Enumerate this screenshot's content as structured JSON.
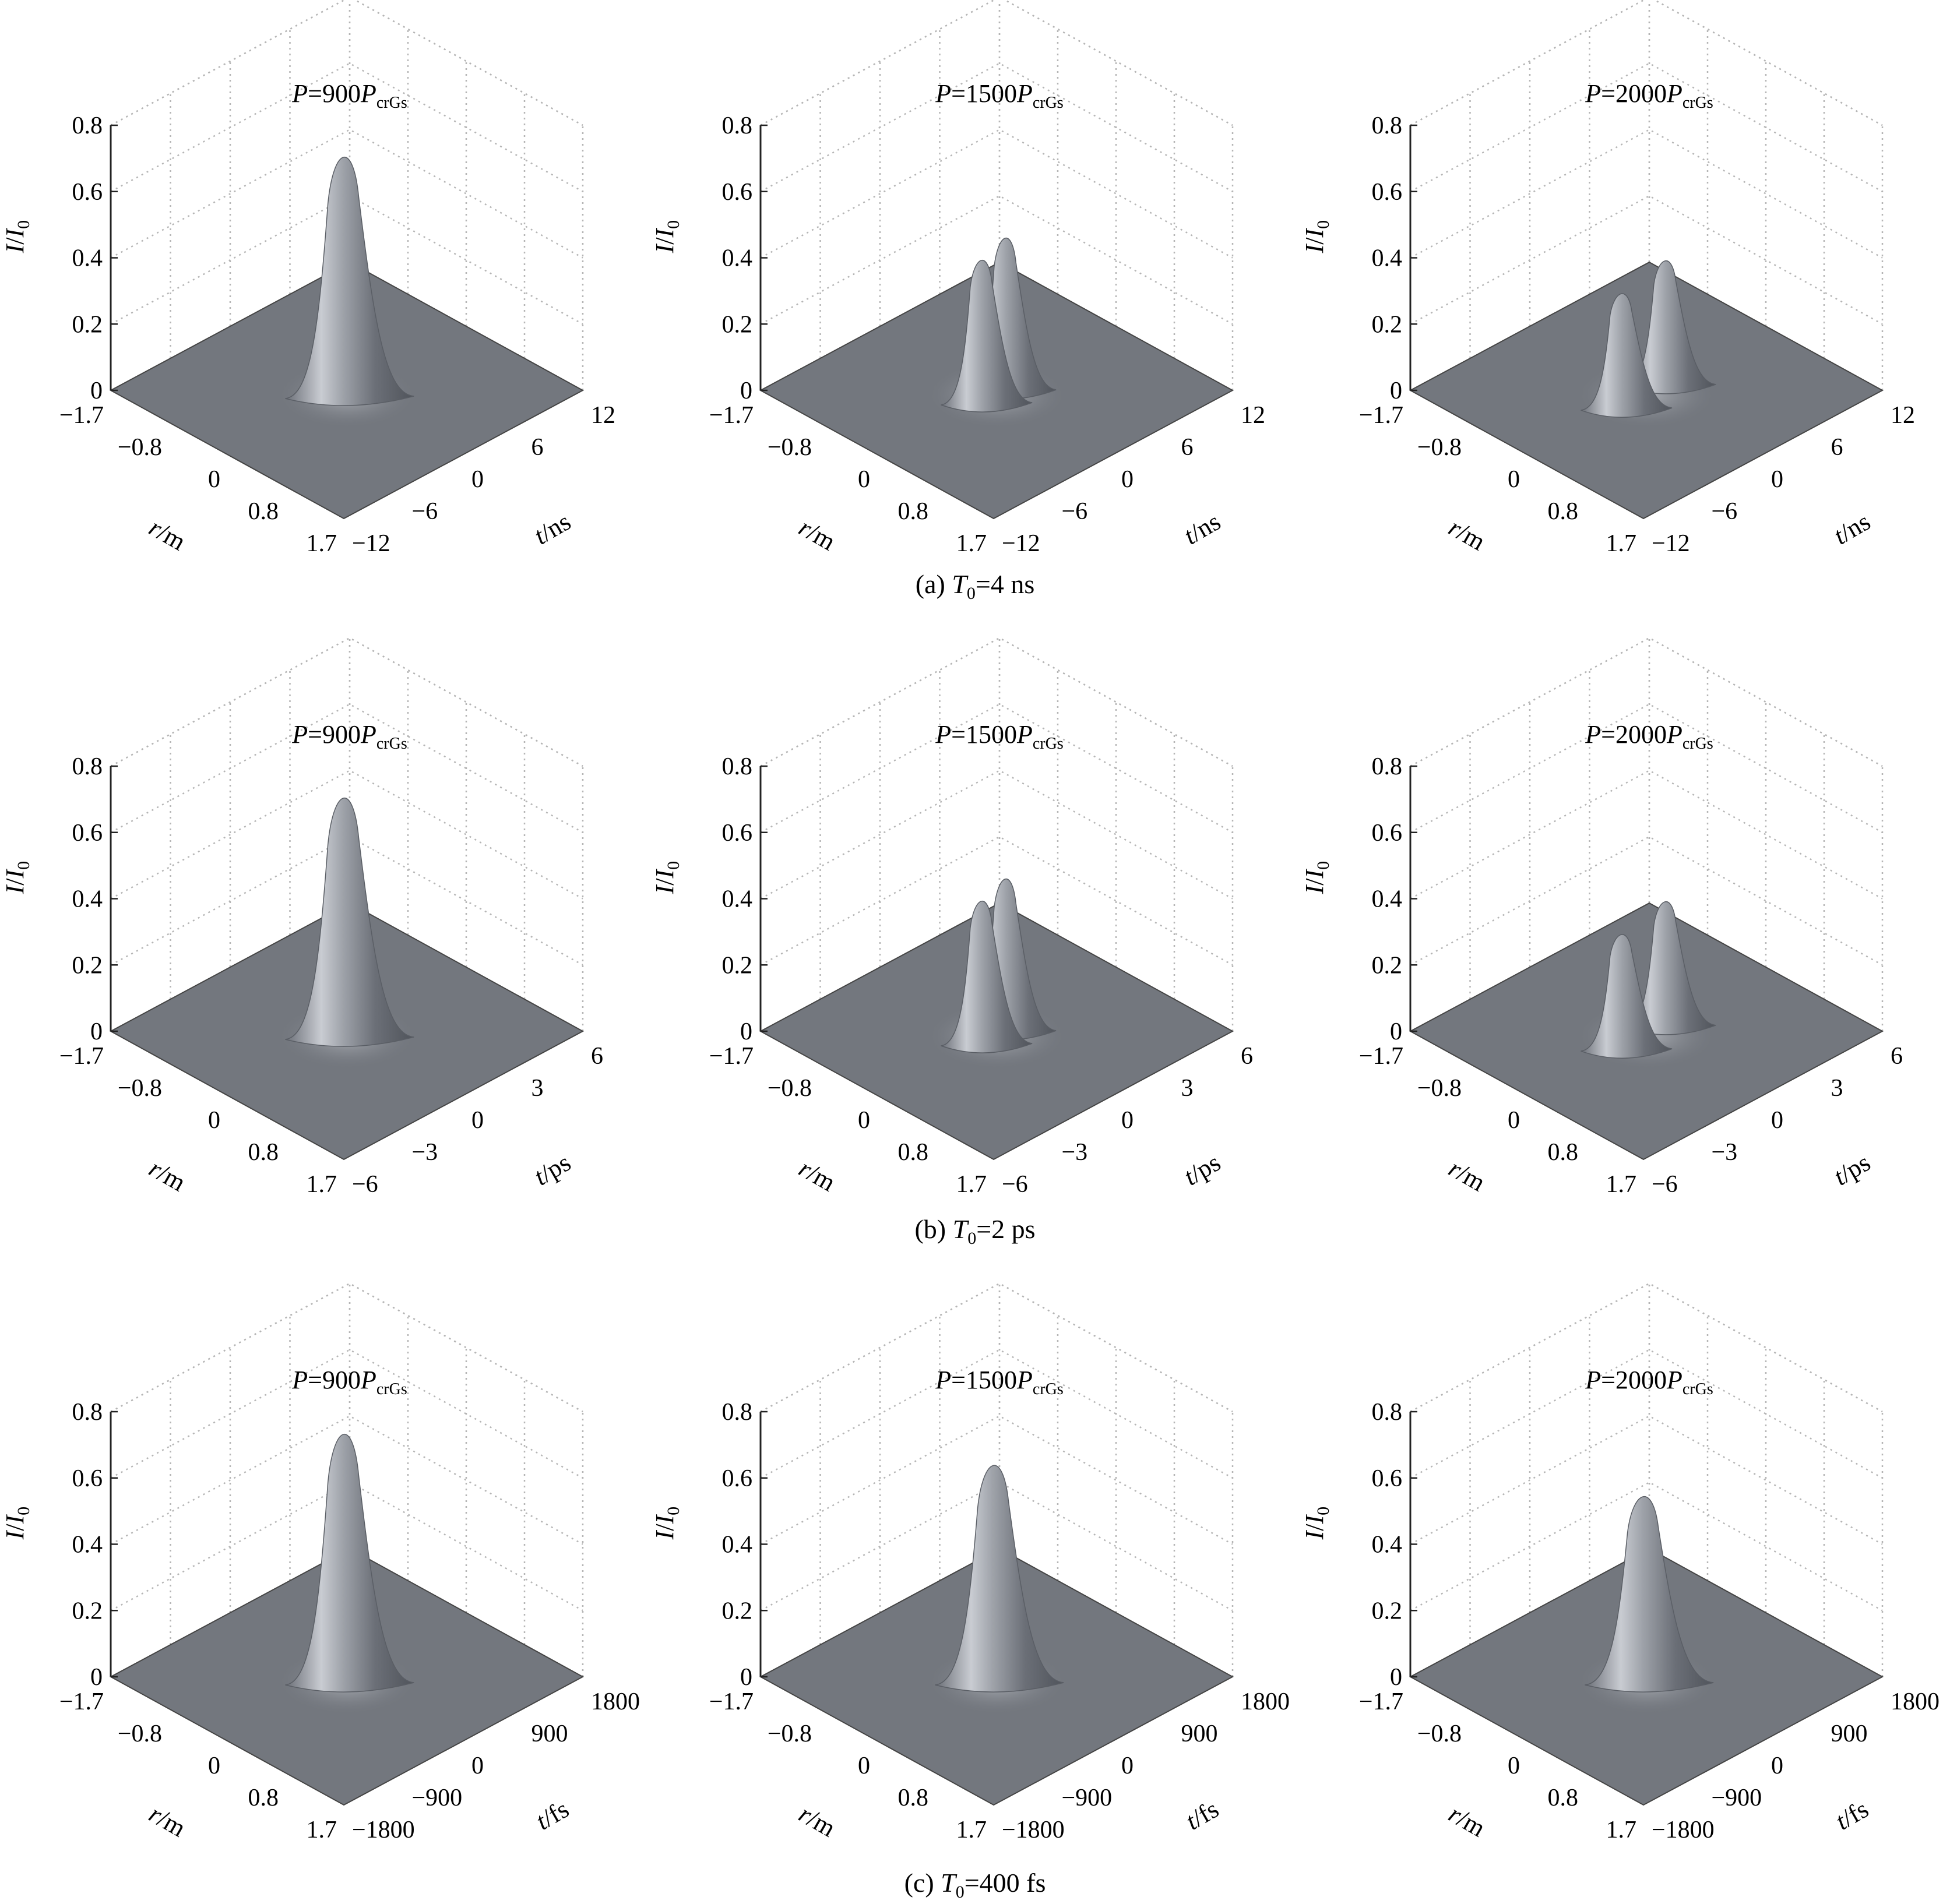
{
  "chart_data": [
    {
      "type": "surface3d",
      "title": {
        "P": "P",
        "val": "=900",
        "sub": "crGs"
      },
      "zlim": [
        0,
        0.8
      ],
      "zticks": [
        "0",
        "0.2",
        "0.4",
        "0.6",
        "0.8"
      ],
      "rticks": [
        "−1.7",
        "−0.8",
        "0",
        "0.8",
        "1.7"
      ],
      "tticks": [
        "−12",
        "−6",
        "0",
        "6",
        "12"
      ],
      "zlabel": {
        "a": "I",
        "b": "/",
        "c": "I",
        "sub": "0"
      },
      "rlabel": {
        "v": "r",
        "u": "/m"
      },
      "tlabel": {
        "v": "t",
        "u": "/ns"
      },
      "peaks": [
        {
          "r": 0,
          "t": 0,
          "height": 0.75
        }
      ]
    },
    {
      "type": "surface3d",
      "title": {
        "P": "P",
        "val": "=1500",
        "sub": "crGs"
      },
      "zlim": [
        0,
        0.8
      ],
      "zticks": [
        "0",
        "0.2",
        "0.4",
        "0.6",
        "0.8"
      ],
      "rticks": [
        "−1.7",
        "−0.8",
        "0",
        "0.8",
        "1.7"
      ],
      "tticks": [
        "−12",
        "−6",
        "0",
        "6",
        "12"
      ],
      "zlabel": {
        "a": "I",
        "b": "/",
        "c": "I",
        "sub": "0"
      },
      "rlabel": {
        "v": "r",
        "u": "/m"
      },
      "tlabel": {
        "v": "t",
        "u": "/ns"
      },
      "peaks": [
        {
          "r": 0,
          "t": -1.2,
          "height": 0.44
        },
        {
          "r": 0,
          "t": 1.2,
          "height": 0.47
        }
      ]
    },
    {
      "type": "surface3d",
      "title": {
        "P": "P",
        "val": "=2000",
        "sub": "crGs"
      },
      "zlim": [
        0,
        0.8
      ],
      "zticks": [
        "0",
        "0.2",
        "0.4",
        "0.6",
        "0.8"
      ],
      "rticks": [
        "−1.7",
        "−0.8",
        "0",
        "0.8",
        "1.7"
      ],
      "tticks": [
        "−12",
        "−6",
        "0",
        "6",
        "12"
      ],
      "zlabel": {
        "a": "I",
        "b": "/",
        "c": "I",
        "sub": "0"
      },
      "rlabel": {
        "v": "r",
        "u": "/m"
      },
      "tlabel": {
        "v": "t",
        "u": "/ns"
      },
      "peaks": [
        {
          "r": 0,
          "t": -2.2,
          "height": 0.35
        },
        {
          "r": 0,
          "t": 2.2,
          "height": 0.38
        }
      ]
    },
    {
      "type": "surface3d",
      "title": {
        "P": "P",
        "val": "=900",
        "sub": "crGs"
      },
      "zlim": [
        0,
        0.8
      ],
      "zticks": [
        "0",
        "0.2",
        "0.4",
        "0.6",
        "0.8"
      ],
      "rticks": [
        "−1.7",
        "−0.8",
        "0",
        "0.8",
        "1.7"
      ],
      "tticks": [
        "−6",
        "−3",
        "0",
        "3",
        "6"
      ],
      "zlabel": {
        "a": "I",
        "b": "/",
        "c": "I",
        "sub": "0"
      },
      "rlabel": {
        "v": "r",
        "u": "/m"
      },
      "tlabel": {
        "v": "t",
        "u": "/ps"
      },
      "peaks": [
        {
          "r": 0,
          "t": 0,
          "height": 0.75
        }
      ]
    },
    {
      "type": "surface3d",
      "title": {
        "P": "P",
        "val": "=1500",
        "sub": "crGs"
      },
      "zlim": [
        0,
        0.8
      ],
      "zticks": [
        "0",
        "0.2",
        "0.4",
        "0.6",
        "0.8"
      ],
      "rticks": [
        "−1.7",
        "−0.8",
        "0",
        "0.8",
        "1.7"
      ],
      "tticks": [
        "−6",
        "−3",
        "0",
        "3",
        "6"
      ],
      "zlabel": {
        "a": "I",
        "b": "/",
        "c": "I",
        "sub": "0"
      },
      "rlabel": {
        "v": "r",
        "u": "/m"
      },
      "tlabel": {
        "v": "t",
        "u": "/ps"
      },
      "peaks": [
        {
          "r": 0,
          "t": -0.6,
          "height": 0.44
        },
        {
          "r": 0,
          "t": 0.6,
          "height": 0.47
        }
      ]
    },
    {
      "type": "surface3d",
      "title": {
        "P": "P",
        "val": "=2000",
        "sub": "crGs"
      },
      "zlim": [
        0,
        0.8
      ],
      "zticks": [
        "0",
        "0.2",
        "0.4",
        "0.6",
        "0.8"
      ],
      "rticks": [
        "−1.7",
        "−0.8",
        "0",
        "0.8",
        "1.7"
      ],
      "tticks": [
        "−6",
        "−3",
        "0",
        "3",
        "6"
      ],
      "zlabel": {
        "a": "I",
        "b": "/",
        "c": "I",
        "sub": "0"
      },
      "rlabel": {
        "v": "r",
        "u": "/m"
      },
      "tlabel": {
        "v": "t",
        "u": "/ps"
      },
      "peaks": [
        {
          "r": 0,
          "t": -1.1,
          "height": 0.35
        },
        {
          "r": 0,
          "t": 1.1,
          "height": 0.38
        }
      ]
    },
    {
      "type": "surface3d",
      "title": {
        "P": "P",
        "val": "=900",
        "sub": "crGs"
      },
      "zlim": [
        0,
        0.8
      ],
      "zticks": [
        "0",
        "0.2",
        "0.4",
        "0.6",
        "0.8"
      ],
      "rticks": [
        "−1.7",
        "−0.8",
        "0",
        "0.8",
        "1.7"
      ],
      "tticks": [
        "−1800",
        "−900",
        "0",
        "900",
        "1800"
      ],
      "zlabel": {
        "a": "I",
        "b": "/",
        "c": "I",
        "sub": "0"
      },
      "rlabel": {
        "v": "r",
        "u": "/m"
      },
      "tlabel": {
        "v": "t",
        "u": "/fs"
      },
      "peaks": [
        {
          "r": 0,
          "t": 0,
          "height": 0.78
        }
      ]
    },
    {
      "type": "surface3d",
      "title": {
        "P": "P",
        "val": "=1500",
        "sub": "crGs"
      },
      "zlim": [
        0,
        0.8
      ],
      "zticks": [
        "0",
        "0.2",
        "0.4",
        "0.6",
        "0.8"
      ],
      "rticks": [
        "−1.7",
        "−0.8",
        "0",
        "0.8",
        "1.7"
      ],
      "tticks": [
        "−1800",
        "−900",
        "0",
        "900",
        "1800"
      ],
      "zlabel": {
        "a": "I",
        "b": "/",
        "c": "I",
        "sub": "0"
      },
      "rlabel": {
        "v": "r",
        "u": "/m"
      },
      "tlabel": {
        "v": "t",
        "u": "/fs"
      },
      "peaks": [
        {
          "r": 0,
          "t": 0,
          "height": 0.68
        }
      ]
    },
    {
      "type": "surface3d",
      "title": {
        "P": "P",
        "val": "=2000",
        "sub": "crGs"
      },
      "zlim": [
        0,
        0.8
      ],
      "zticks": [
        "0",
        "0.2",
        "0.4",
        "0.6",
        "0.8"
      ],
      "rticks": [
        "−1.7",
        "−0.8",
        "0",
        "0.8",
        "1.7"
      ],
      "tticks": [
        "−1800",
        "−900",
        "0",
        "900",
        "1800"
      ],
      "zlabel": {
        "a": "I",
        "b": "/",
        "c": "I",
        "sub": "0"
      },
      "rlabel": {
        "v": "r",
        "u": "/m"
      },
      "tlabel": {
        "v": "t",
        "u": "/fs"
      },
      "peaks": [
        {
          "r": 0,
          "t": 0,
          "height": 0.58
        }
      ]
    }
  ],
  "captions": [
    {
      "pre": "(a) ",
      "T": "T",
      "sub": "0",
      "post": "=4 ns"
    },
    {
      "pre": "(b) ",
      "T": "T",
      "sub": "0",
      "post": "=2 ps"
    },
    {
      "pre": "(c) ",
      "T": "T",
      "sub": "0",
      "post": "=400 fs"
    }
  ]
}
